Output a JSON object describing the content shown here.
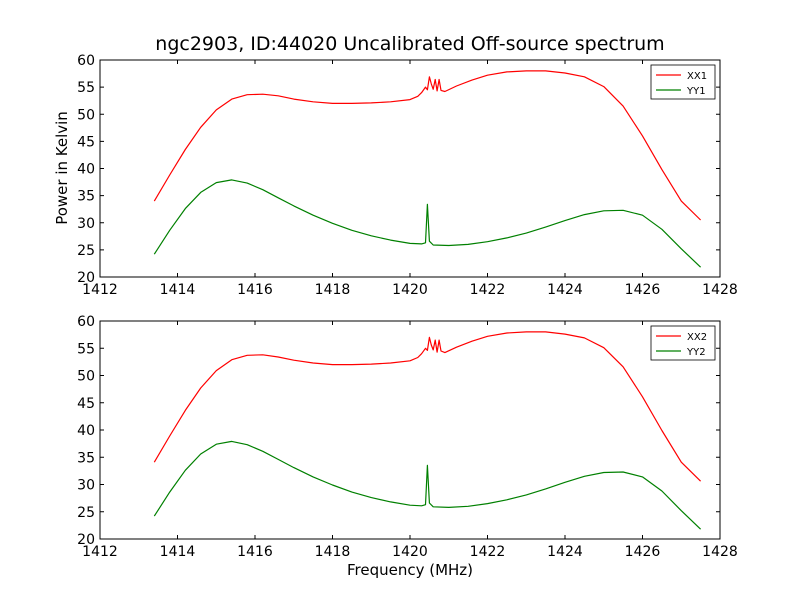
{
  "title": "ngc2903, ID:44020 Uncalibrated Off-source spectrum",
  "chart_data": [
    {
      "type": "line",
      "xlabel": "",
      "ylabel": "Power in Kelvin",
      "xlim": [
        1412,
        1428
      ],
      "ylim": [
        20,
        60
      ],
      "xticks": [
        1412,
        1414,
        1416,
        1418,
        1420,
        1422,
        1424,
        1426,
        1428
      ],
      "yticks": [
        20,
        25,
        30,
        35,
        40,
        45,
        50,
        55,
        60
      ],
      "grid": false,
      "legend": "top-right",
      "series": [
        {
          "name": "XX1",
          "color": "#ff0000",
          "x": [
            1413.4,
            1413.8,
            1414.2,
            1414.6,
            1415.0,
            1415.4,
            1415.8,
            1416.2,
            1416.6,
            1417.0,
            1417.5,
            1418.0,
            1418.5,
            1419.0,
            1419.5,
            1420.0,
            1420.2,
            1420.3,
            1420.4,
            1420.45,
            1420.5,
            1420.55,
            1420.6,
            1420.65,
            1420.7,
            1420.75,
            1420.8,
            1420.9,
            1421.2,
            1421.6,
            1422.0,
            1422.5,
            1423.0,
            1423.5,
            1424.0,
            1424.5,
            1425.0,
            1425.5,
            1426.0,
            1426.5,
            1427.0,
            1427.5
          ],
          "values": [
            34.0,
            38.8,
            43.5,
            47.6,
            50.8,
            52.8,
            53.6,
            53.7,
            53.4,
            52.8,
            52.3,
            52.0,
            52.0,
            52.1,
            52.3,
            52.7,
            53.3,
            54.0,
            55.0,
            54.5,
            56.9,
            55.6,
            54.6,
            56.4,
            54.3,
            56.4,
            54.4,
            54.2,
            55.2,
            56.3,
            57.2,
            57.8,
            58.0,
            58.0,
            57.6,
            56.9,
            55.1,
            51.5,
            46.0,
            39.8,
            34.0,
            30.5
          ]
        },
        {
          "name": "YY1",
          "color": "#008000",
          "x": [
            1413.4,
            1413.8,
            1414.2,
            1414.6,
            1415.0,
            1415.4,
            1415.8,
            1416.2,
            1416.6,
            1417.0,
            1417.5,
            1418.0,
            1418.5,
            1419.0,
            1419.5,
            1420.0,
            1420.3,
            1420.4,
            1420.45,
            1420.5,
            1420.6,
            1421.0,
            1421.5,
            1422.0,
            1422.5,
            1423.0,
            1423.5,
            1424.0,
            1424.5,
            1425.0,
            1425.5,
            1426.0,
            1426.5,
            1427.0,
            1427.5
          ],
          "values": [
            24.2,
            28.6,
            32.6,
            35.6,
            37.4,
            37.9,
            37.3,
            36.1,
            34.6,
            33.1,
            31.4,
            29.9,
            28.6,
            27.6,
            26.8,
            26.2,
            26.1,
            26.3,
            33.4,
            26.6,
            25.9,
            25.8,
            26.0,
            26.5,
            27.2,
            28.1,
            29.2,
            30.4,
            31.5,
            32.2,
            32.3,
            31.4,
            28.8,
            25.2,
            21.8
          ]
        }
      ]
    },
    {
      "type": "line",
      "xlabel": "Frequency (MHz)",
      "ylabel": "",
      "xlim": [
        1412,
        1428
      ],
      "ylim": [
        20,
        60
      ],
      "xticks": [
        1412,
        1414,
        1416,
        1418,
        1420,
        1422,
        1424,
        1426,
        1428
      ],
      "yticks": [
        20,
        25,
        30,
        35,
        40,
        45,
        50,
        55,
        60
      ],
      "grid": false,
      "legend": "top-right",
      "series": [
        {
          "name": "XX2",
          "color": "#ff0000",
          "x": [
            1413.4,
            1413.8,
            1414.2,
            1414.6,
            1415.0,
            1415.4,
            1415.8,
            1416.2,
            1416.6,
            1417.0,
            1417.5,
            1418.0,
            1418.5,
            1419.0,
            1419.5,
            1420.0,
            1420.2,
            1420.3,
            1420.4,
            1420.45,
            1420.5,
            1420.55,
            1420.6,
            1420.65,
            1420.7,
            1420.75,
            1420.8,
            1420.9,
            1421.2,
            1421.6,
            1422.0,
            1422.5,
            1423.0,
            1423.5,
            1424.0,
            1424.5,
            1425.0,
            1425.5,
            1426.0,
            1426.5,
            1427.0,
            1427.5
          ],
          "values": [
            34.1,
            38.9,
            43.6,
            47.7,
            50.9,
            52.9,
            53.7,
            53.8,
            53.4,
            52.8,
            52.3,
            52.0,
            52.0,
            52.1,
            52.3,
            52.7,
            53.3,
            54.0,
            55.0,
            54.6,
            57.0,
            55.6,
            54.7,
            56.5,
            54.3,
            56.5,
            54.5,
            54.2,
            55.2,
            56.3,
            57.2,
            57.8,
            58.0,
            58.0,
            57.6,
            56.9,
            55.1,
            51.6,
            46.1,
            39.9,
            34.1,
            30.6
          ]
        },
        {
          "name": "YY2",
          "color": "#008000",
          "x": [
            1413.4,
            1413.8,
            1414.2,
            1414.6,
            1415.0,
            1415.4,
            1415.8,
            1416.2,
            1416.6,
            1417.0,
            1417.5,
            1418.0,
            1418.5,
            1419.0,
            1419.5,
            1420.0,
            1420.3,
            1420.4,
            1420.45,
            1420.5,
            1420.6,
            1421.0,
            1421.5,
            1422.0,
            1422.5,
            1423.0,
            1423.5,
            1424.0,
            1424.5,
            1425.0,
            1425.5,
            1426.0,
            1426.5,
            1427.0,
            1427.5
          ],
          "values": [
            24.2,
            28.6,
            32.6,
            35.6,
            37.4,
            37.9,
            37.3,
            36.1,
            34.6,
            33.1,
            31.4,
            29.9,
            28.6,
            27.6,
            26.8,
            26.2,
            26.1,
            26.3,
            33.5,
            26.6,
            25.9,
            25.8,
            26.0,
            26.5,
            27.2,
            28.1,
            29.2,
            30.4,
            31.5,
            32.2,
            32.3,
            31.4,
            28.8,
            25.2,
            21.8
          ]
        }
      ]
    }
  ]
}
